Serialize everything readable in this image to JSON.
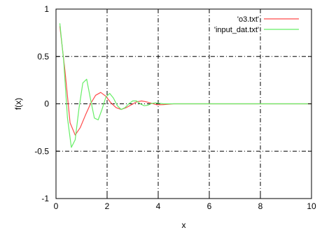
{
  "chart_data": {
    "type": "line",
    "title": "",
    "xlabel": "x",
    "ylabel": "f(x)",
    "xlim": [
      0,
      10
    ],
    "ylim": [
      -1,
      1
    ],
    "xticks": [
      0,
      2,
      4,
      6,
      8,
      10
    ],
    "yticks": [
      -1,
      -0.5,
      0,
      0.5,
      1
    ],
    "xtick_labels": [
      "0",
      "2",
      "4",
      "6",
      "8",
      "10"
    ],
    "ytick_labels": [
      "-1",
      "-0.5",
      "0",
      "0.5",
      "1"
    ],
    "grid": true,
    "legend_position": "top-right",
    "series": [
      {
        "name": "'o3.txt'",
        "color": "#ff4b4b",
        "x": [
          0.15,
          0.35,
          0.55,
          0.75,
          0.95,
          1.15,
          1.35,
          1.55,
          1.75,
          1.95,
          2.15,
          2.35,
          2.55,
          2.75,
          2.95,
          3.15,
          3.35,
          3.55,
          3.75,
          3.95,
          4.2,
          4.6,
          5.0,
          6.0,
          7.0,
          8.0,
          9.0,
          10.0
        ],
        "y": [
          0.82,
          0.35,
          -0.2,
          -0.33,
          -0.25,
          -0.12,
          0.0,
          0.09,
          0.12,
          0.08,
          0.01,
          -0.04,
          -0.06,
          -0.04,
          -0.01,
          0.02,
          0.03,
          0.02,
          0.005,
          -0.01,
          -0.008,
          0.0,
          0.0,
          0.0,
          0.0,
          0.0,
          0.0,
          0.0
        ]
      },
      {
        "name": "'input_dat.txt'",
        "color": "#66ee66",
        "x": [
          0.15,
          0.3,
          0.45,
          0.6,
          0.75,
          0.9,
          1.05,
          1.2,
          1.35,
          1.5,
          1.65,
          1.8,
          1.95,
          2.1,
          2.25,
          2.4,
          2.55,
          2.7,
          2.85,
          3.0,
          3.15,
          3.3,
          3.45,
          3.6,
          3.75,
          3.9,
          4.2,
          4.6,
          5.0,
          6.0,
          7.0,
          8.0,
          9.0,
          10.0
        ],
        "y": [
          0.85,
          0.45,
          -0.15,
          -0.46,
          -0.38,
          -0.05,
          0.22,
          0.26,
          0.05,
          -0.15,
          -0.17,
          -0.06,
          0.07,
          0.11,
          0.06,
          -0.02,
          -0.06,
          -0.04,
          0.0,
          0.03,
          0.03,
          0.0,
          -0.02,
          -0.015,
          0.005,
          0.01,
          0.0,
          0.0,
          0.0,
          0.0,
          0.0,
          0.0,
          0.0,
          0.0
        ]
      }
    ]
  }
}
